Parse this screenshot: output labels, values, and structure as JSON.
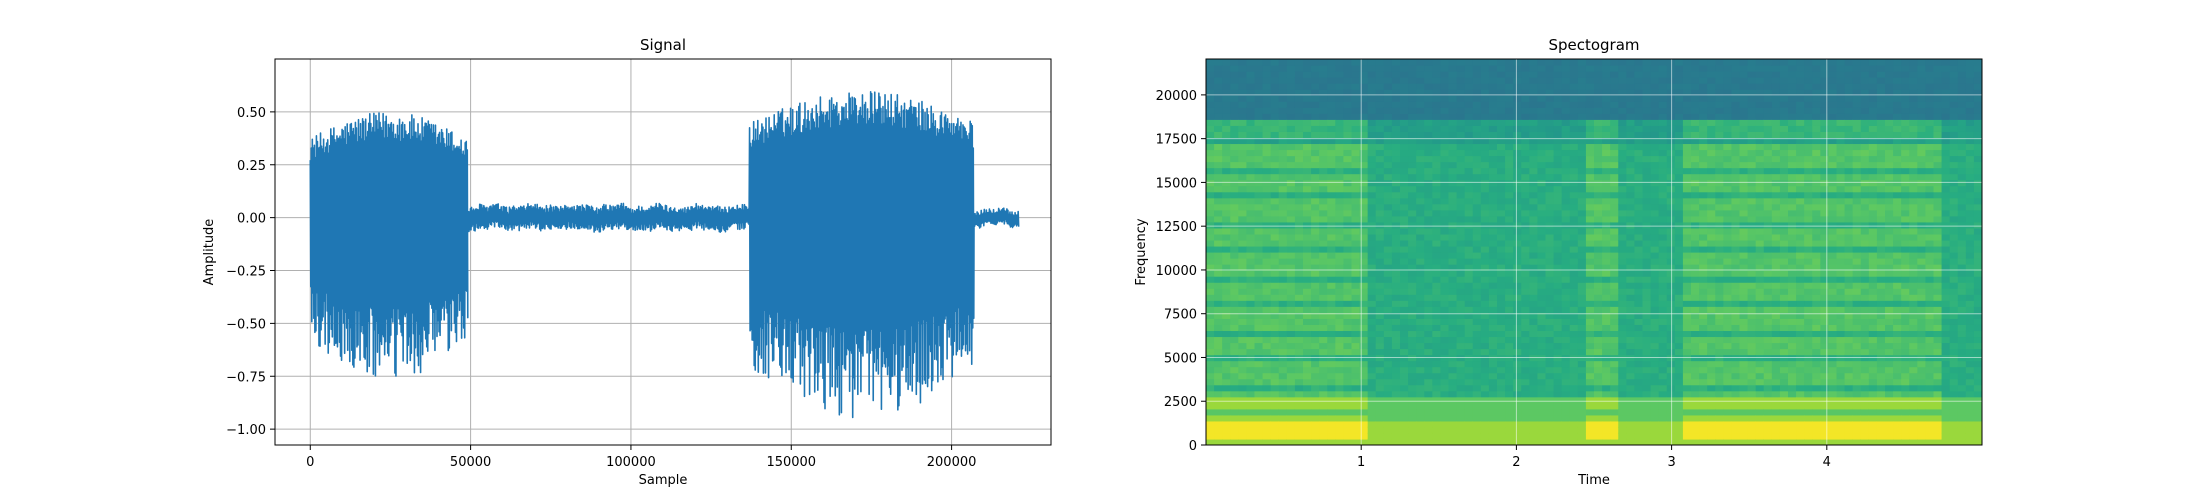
{
  "chart_data": [
    {
      "type": "line",
      "title": "Signal",
      "xlabel": "Sample",
      "ylabel": "Amplitude",
      "xlim": [
        -11000,
        231000
      ],
      "ylim": [
        -1.075,
        0.75
      ],
      "xticks": [
        0,
        50000,
        100000,
        150000,
        200000
      ],
      "xtick_labels": [
        "0",
        "50000",
        "100000",
        "150000",
        "200000"
      ],
      "yticks": [
        -1.0,
        -0.75,
        -0.5,
        -0.25,
        0.0,
        0.25,
        0.5
      ],
      "ytick_labels": [
        "−1.00",
        "−0.75",
        "−0.50",
        "−0.25",
        "0.00",
        "0.25",
        "0.50"
      ],
      "grid": true,
      "color": "#1f77b4",
      "segments": [
        {
          "x_start": 0,
          "x_end": 49000,
          "amp_high": 0.5,
          "amp_low": -0.78,
          "kind": "burst"
        },
        {
          "x_start": 49000,
          "x_end": 137000,
          "amp_high": 0.06,
          "amp_low": -0.06,
          "kind": "quiet"
        },
        {
          "x_start": 137000,
          "x_end": 207000,
          "amp_high": 0.6,
          "amp_low": -0.95,
          "kind": "burst"
        },
        {
          "x_start": 207000,
          "x_end": 221000,
          "amp_high": 0.04,
          "amp_low": -0.04,
          "kind": "quiet"
        }
      ]
    },
    {
      "type": "heatmap",
      "title": "Spectogram",
      "xlabel": "Time",
      "ylabel": "Frequency",
      "xlim": [
        0,
        5.0
      ],
      "ylim": [
        0,
        22050
      ],
      "xticks": [
        1,
        2,
        3,
        4
      ],
      "xtick_labels": [
        "1",
        "2",
        "3",
        "4"
      ],
      "yticks": [
        0,
        2500,
        5000,
        7500,
        10000,
        12500,
        15000,
        17500,
        20000
      ],
      "ytick_labels": [
        "0",
        "2500",
        "5000",
        "7500",
        "10000",
        "12500",
        "15000",
        "17500",
        "20000"
      ],
      "grid": true,
      "colormap": "viridis",
      "active_time_ranges": [
        [
          0,
          1.05
        ],
        [
          2.45,
          2.65
        ],
        [
          3.05,
          4.75
        ]
      ],
      "cutoff_frequency": 18500
    }
  ]
}
